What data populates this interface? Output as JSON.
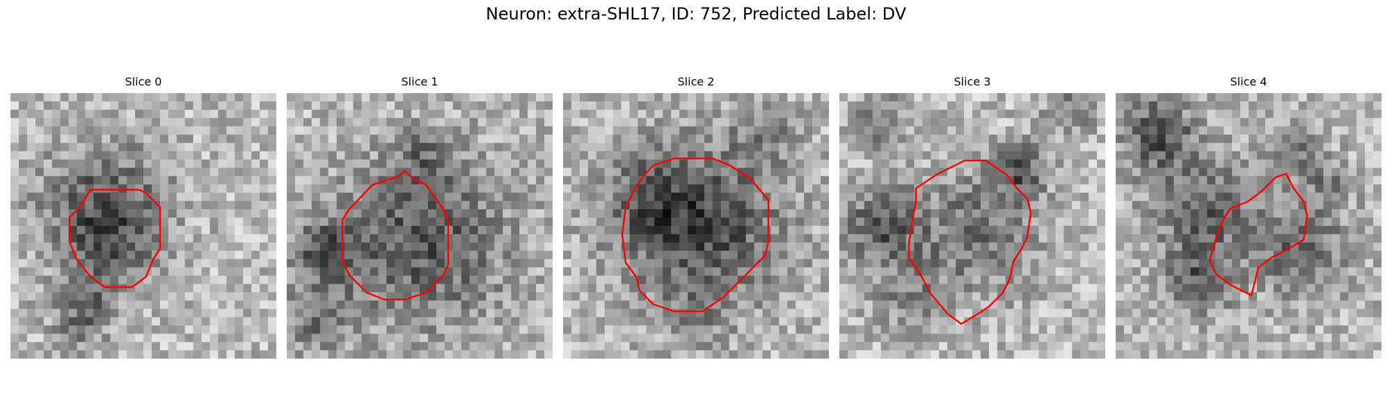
{
  "figure": {
    "title": "Neuron: extra-SHL17, ID: 752, Predicted Label: DV"
  },
  "panels": [
    {
      "title": "Slice 0"
    },
    {
      "title": "Slice 1"
    },
    {
      "title": "Slice 2"
    },
    {
      "title": "Slice 3"
    },
    {
      "title": "Slice 4"
    }
  ],
  "colors": {
    "contour": "#ff0000",
    "background": "#ffffff"
  }
}
